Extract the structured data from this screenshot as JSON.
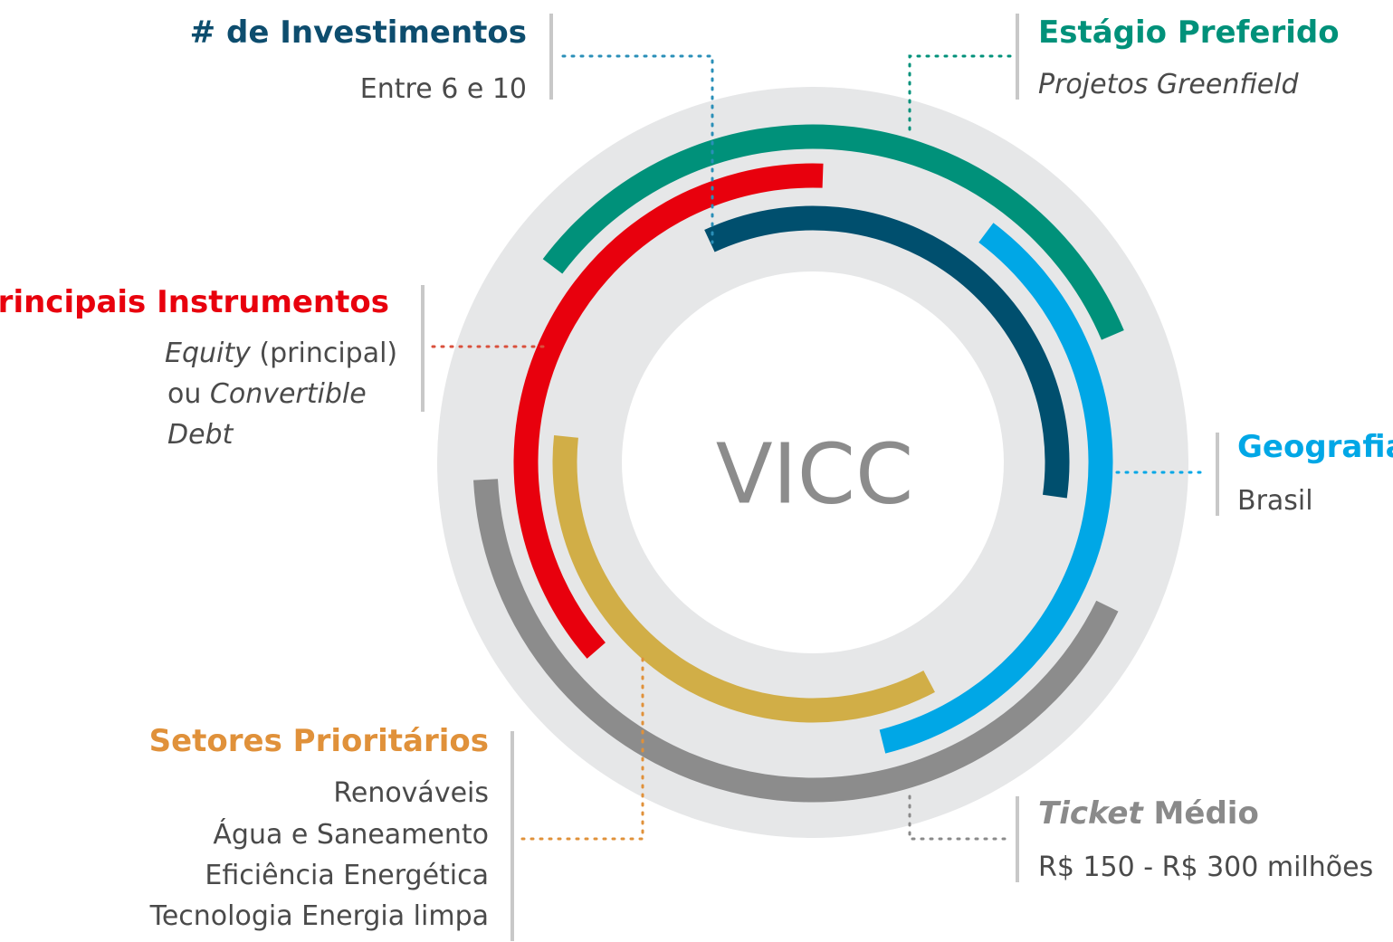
{
  "center": "VICC",
  "investimentos": {
    "title": "# de Investimentos",
    "lines": [
      "Entre 6 e 10"
    ]
  },
  "estagio": {
    "title": "Estágio Preferido",
    "lines": [
      "Projetos Greenfield"
    ]
  },
  "instrumentos": {
    "title": "Principais Instrumentos",
    "lines": [
      [
        "Equity",
        " (principal)"
      ],
      [
        "ou ",
        "Convertible"
      ],
      [
        "Debt"
      ]
    ]
  },
  "geografia": {
    "title": "Geografia",
    "lines": [
      "Brasil"
    ]
  },
  "setores": {
    "title": "Setores Prioritários",
    "lines": [
      "Renováveis",
      "Água e Saneamento",
      "Eficiência Energética",
      "Tecnologia Energia limpa"
    ]
  },
  "ticket": {
    "title": [
      "Ticket",
      " Médio"
    ],
    "lines": [
      "R$ 150 - R$ 300 milhões"
    ]
  }
}
